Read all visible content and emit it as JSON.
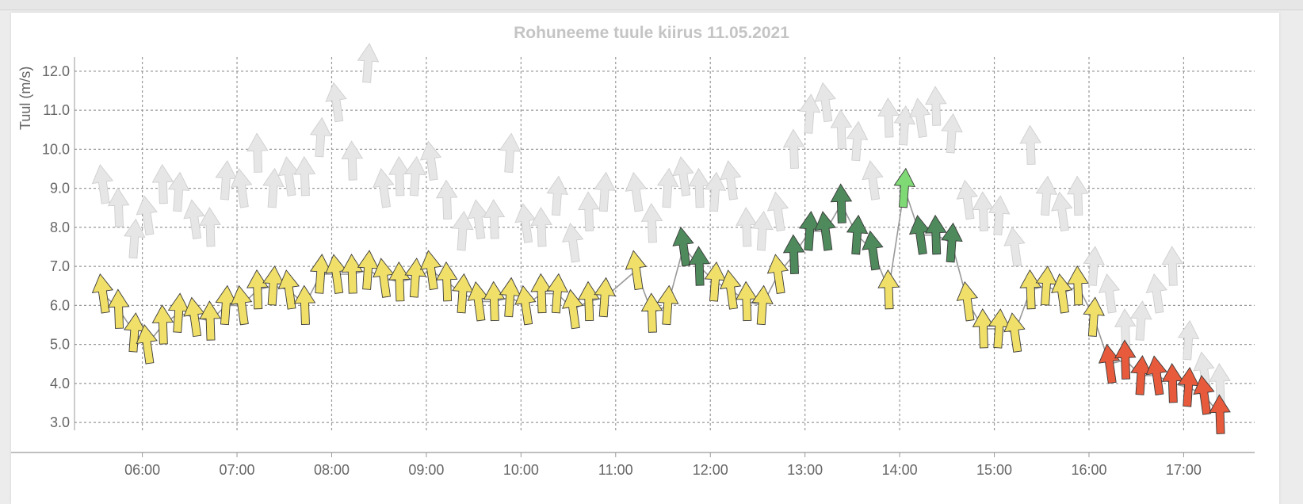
{
  "chart_data": {
    "type": "line",
    "title": "Rohuneeme tuule kiirus 11.05.2021",
    "xlabel": "",
    "ylabel": "Tuul (m/s)",
    "xlim": [
      "05:17",
      "17:45"
    ],
    "ylim": [
      2.8,
      12.2
    ],
    "yticks": [
      "3.0",
      "4.0",
      "5.0",
      "6.0",
      "7.0",
      "8.0",
      "9.0",
      "10.0",
      "11.0",
      "12.0"
    ],
    "xticks": [
      "06:00",
      "07:00",
      "08:00",
      "09:00",
      "10:00",
      "11:00",
      "12:00",
      "13:00",
      "14:00",
      "15:00",
      "16:00",
      "17:00"
    ],
    "grid": true,
    "legend": "none",
    "colors": {
      "weak": "#e75a3c",
      "moderate": "#f0e06a",
      "fresh": "#4e8a5c",
      "strong": "#7fda76",
      "gust": "#e6e6e6",
      "line": "#999999",
      "grid": "#999999"
    },
    "series": [
      {
        "name": "",
        "marker": "arrow",
        "points": [
          [
            "05:35",
            6.3
          ],
          [
            "05:45",
            5.9
          ],
          [
            "05:55",
            5.3
          ],
          [
            "06:03",
            5.0
          ],
          [
            "06:13",
            5.5
          ],
          [
            "06:23",
            5.8
          ],
          [
            "06:33",
            5.7
          ],
          [
            "06:43",
            5.6
          ],
          [
            "06:53",
            6.0
          ],
          [
            "07:03",
            6.0
          ],
          [
            "07:13",
            6.4
          ],
          [
            "07:23",
            6.5
          ],
          [
            "07:33",
            6.4
          ],
          [
            "07:43",
            6.0
          ],
          [
            "07:53",
            6.8
          ],
          [
            "08:03",
            6.8
          ],
          [
            "08:13",
            6.8
          ],
          [
            "08:23",
            6.9
          ],
          [
            "08:33",
            6.7
          ],
          [
            "08:43",
            6.6
          ],
          [
            "08:53",
            6.7
          ],
          [
            "09:03",
            6.9
          ],
          [
            "09:13",
            6.6
          ],
          [
            "09:23",
            6.3
          ],
          [
            "09:33",
            6.1
          ],
          [
            "09:43",
            6.1
          ],
          [
            "09:53",
            6.2
          ],
          [
            "10:03",
            6.0
          ],
          [
            "10:13",
            6.3
          ],
          [
            "10:23",
            6.3
          ],
          [
            "10:33",
            5.9
          ],
          [
            "10:43",
            6.1
          ],
          [
            "10:53",
            6.2
          ],
          [
            "11:13",
            6.9
          ],
          [
            "11:23",
            5.8
          ],
          [
            "11:33",
            6.0
          ],
          [
            "11:43",
            7.5
          ],
          [
            "11:53",
            7.0
          ],
          [
            "12:03",
            6.6
          ],
          [
            "12:13",
            6.4
          ],
          [
            "12:23",
            6.1
          ],
          [
            "12:33",
            6.0
          ],
          [
            "12:43",
            6.8
          ],
          [
            "12:53",
            7.3
          ],
          [
            "13:03",
            7.9
          ],
          [
            "13:13",
            7.9
          ],
          [
            "13:23",
            8.6
          ],
          [
            "13:33",
            7.8
          ],
          [
            "13:43",
            7.4
          ],
          [
            "13:53",
            6.4
          ],
          [
            "14:03",
            9.0
          ],
          [
            "14:13",
            7.8
          ],
          [
            "14:23",
            7.8
          ],
          [
            "14:33",
            7.6
          ],
          [
            "14:43",
            6.1
          ],
          [
            "14:53",
            5.4
          ],
          [
            "15:03",
            5.4
          ],
          [
            "15:13",
            5.3
          ],
          [
            "15:23",
            6.4
          ],
          [
            "15:33",
            6.5
          ],
          [
            "15:43",
            6.3
          ],
          [
            "15:53",
            6.5
          ],
          [
            "16:03",
            5.7
          ],
          [
            "16:13",
            4.5
          ],
          [
            "16:23",
            4.6
          ],
          [
            "16:33",
            4.2
          ],
          [
            "16:43",
            4.2
          ],
          [
            "16:53",
            4.0
          ],
          [
            "17:03",
            3.9
          ],
          [
            "17:13",
            3.7
          ],
          [
            "17:23",
            3.2
          ]
        ]
      },
      {
        "name": "",
        "marker": "arrow",
        "points": [
          [
            "05:35",
            9.1
          ],
          [
            "05:45",
            8.5
          ],
          [
            "05:55",
            7.7
          ],
          [
            "06:03",
            8.3
          ],
          [
            "06:13",
            9.1
          ],
          [
            "06:23",
            8.9
          ],
          [
            "06:33",
            8.2
          ],
          [
            "06:43",
            8.0
          ],
          [
            "06:53",
            9.2
          ],
          [
            "07:03",
            9.0
          ],
          [
            "07:13",
            9.9
          ],
          [
            "07:23",
            9.0
          ],
          [
            "07:33",
            9.3
          ],
          [
            "07:43",
            9.3
          ],
          [
            "07:53",
            10.3
          ],
          [
            "08:03",
            11.2
          ],
          [
            "08:13",
            9.7
          ],
          [
            "08:23",
            12.2
          ],
          [
            "08:33",
            9.0
          ],
          [
            "08:43",
            9.3
          ],
          [
            "08:53",
            9.3
          ],
          [
            "09:03",
            9.7
          ],
          [
            "09:13",
            8.7
          ],
          [
            "09:23",
            7.9
          ],
          [
            "09:33",
            8.2
          ],
          [
            "09:43",
            8.2
          ],
          [
            "09:53",
            9.9
          ],
          [
            "10:03",
            8.1
          ],
          [
            "10:13",
            8.0
          ],
          [
            "10:23",
            8.8
          ],
          [
            "10:33",
            7.6
          ],
          [
            "10:43",
            8.4
          ],
          [
            "10:53",
            8.9
          ],
          [
            "11:13",
            8.9
          ],
          [
            "11:23",
            8.1
          ],
          [
            "11:33",
            9.0
          ],
          [
            "11:43",
            9.3
          ],
          [
            "11:53",
            9.0
          ],
          [
            "12:03",
            8.9
          ],
          [
            "12:13",
            9.2
          ],
          [
            "12:23",
            8.0
          ],
          [
            "12:33",
            7.9
          ],
          [
            "12:43",
            8.4
          ],
          [
            "12:53",
            10.0
          ],
          [
            "13:03",
            10.9
          ],
          [
            "13:13",
            11.2
          ],
          [
            "13:23",
            10.5
          ],
          [
            "13:33",
            10.2
          ],
          [
            "13:43",
            9.2
          ],
          [
            "13:53",
            10.8
          ],
          [
            "14:03",
            10.6
          ],
          [
            "14:13",
            10.8
          ],
          [
            "14:23",
            11.1
          ],
          [
            "14:33",
            10.4
          ],
          [
            "14:43",
            8.7
          ],
          [
            "14:53",
            8.4
          ],
          [
            "15:03",
            8.3
          ],
          [
            "15:13",
            7.5
          ],
          [
            "15:23",
            10.1
          ],
          [
            "15:33",
            8.8
          ],
          [
            "15:43",
            8.4
          ],
          [
            "15:53",
            8.8
          ],
          [
            "16:03",
            7.0
          ],
          [
            "16:13",
            6.3
          ],
          [
            "16:23",
            5.4
          ],
          [
            "16:33",
            5.6
          ],
          [
            "16:43",
            6.3
          ],
          [
            "16:53",
            7.0
          ],
          [
            "17:03",
            5.1
          ],
          [
            "17:13",
            4.3
          ],
          [
            "17:23",
            4.0
          ]
        ]
      }
    ]
  }
}
